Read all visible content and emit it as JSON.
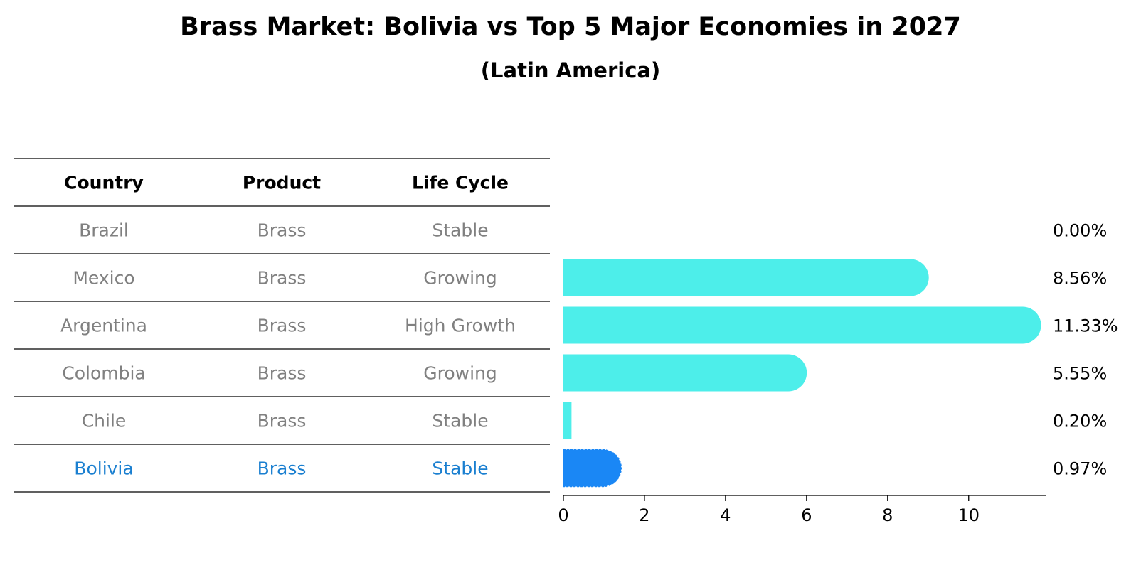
{
  "title": "Brass Market: Bolivia vs Top 5 Major Economies in 2027",
  "subtitle": "(Latin America)",
  "colors": {
    "bar": "#4DEEEA",
    "highlight": "#1A87F5",
    "cell_text": "#808080",
    "highlight_text": "#1A7FD0"
  },
  "table": {
    "headers": [
      "Country",
      "Product",
      "Life Cycle"
    ],
    "rows": [
      {
        "country": "Brazil",
        "product": "Brass",
        "life_cycle": "Stable",
        "highlight": false
      },
      {
        "country": "Mexico",
        "product": "Brass",
        "life_cycle": "Growing",
        "highlight": false
      },
      {
        "country": "Argentina",
        "product": "Brass",
        "life_cycle": "High Growth",
        "highlight": false
      },
      {
        "country": "Colombia",
        "product": "Brass",
        "life_cycle": "Growing",
        "highlight": false
      },
      {
        "country": "Chile",
        "product": "Brass",
        "life_cycle": "Stable",
        "highlight": false
      },
      {
        "country": "Bolivia",
        "product": "Brass",
        "life_cycle": "Stable",
        "highlight": true
      }
    ]
  },
  "chart_data": {
    "type": "bar",
    "orientation": "horizontal",
    "categories": [
      "Brazil",
      "Mexico",
      "Argentina",
      "Colombia",
      "Chile",
      "Bolivia"
    ],
    "values": [
      0.0,
      8.56,
      11.33,
      5.55,
      0.2,
      0.97
    ],
    "value_labels": [
      "0.00%",
      "8.56%",
      "11.33%",
      "5.55%",
      "0.20%",
      "0.97%"
    ],
    "xlim": [
      0,
      11.9
    ],
    "xticks": [
      0,
      2,
      4,
      6,
      8,
      10
    ],
    "grid": false,
    "highlight_category": "Bolivia"
  }
}
